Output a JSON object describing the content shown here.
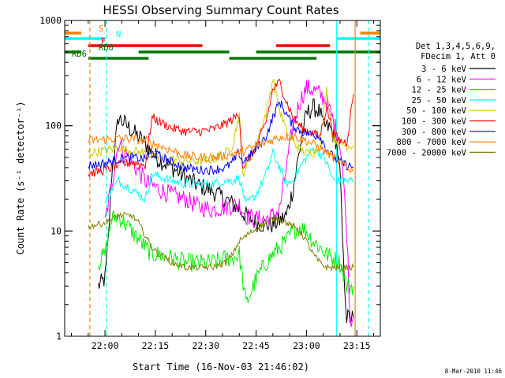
{
  "chart_data": {
    "type": "line",
    "title": "HESSI Observing Summary Count Rates",
    "xlabel": "Start Time (16-Nov-03 21:46:02)",
    "ylabel": "Count Rate (s⁻¹ detector⁻¹)",
    "y_scale": "log",
    "ylim": [
      1,
      1000
    ],
    "xlim_minutes": [
      -12,
      82
    ],
    "x_tick_labels": [
      "22:00",
      "22:15",
      "22:30",
      "22:45",
      "23:00",
      "23:15"
    ],
    "x_tick_minutes": [
      0,
      15,
      30,
      45,
      60,
      75
    ],
    "y_tick_labels": [
      "1",
      "10",
      "100",
      "1000"
    ],
    "y_tick_values": [
      1,
      10,
      100,
      1000
    ],
    "grid": false,
    "legend_position": "right",
    "legend_header": [
      "Det 1,3,4,5,6,9,",
      "FDecim 1, Att 0"
    ],
    "series": [
      {
        "name": "3 - 6 keV",
        "color": "#000000",
        "x": [
          -2,
          0,
          1,
          2,
          4,
          8,
          12,
          14,
          16,
          20,
          24,
          28,
          32,
          36,
          38,
          40,
          42,
          45,
          48,
          50,
          52,
          54,
          56,
          58,
          60,
          62,
          64,
          65,
          67,
          69,
          70,
          71,
          72,
          73,
          74
        ],
        "y": [
          3,
          3.5,
          8,
          35,
          120,
          90,
          68,
          55,
          48,
          40,
          32,
          27,
          24,
          20,
          18,
          16,
          14,
          12,
          11.5,
          11.5,
          12.5,
          14,
          25,
          60,
          130,
          150,
          135,
          100,
          95,
          70,
          35,
          5,
          1.5,
          1.5,
          1.5
        ]
      },
      {
        "name": "6 - 12 keV",
        "color": "#ff00ff",
        "x": [
          0,
          2,
          4,
          8,
          12,
          14,
          16,
          20,
          24,
          28,
          32,
          36,
          38,
          40,
          42,
          45,
          48,
          50,
          52,
          54,
          56,
          58,
          60,
          62,
          64,
          66,
          68,
          70,
          71,
          72,
          73,
          74
        ],
        "y": [
          12,
          28,
          70,
          45,
          30,
          27,
          25,
          22,
          20,
          17,
          16,
          17,
          17.5,
          18,
          14,
          13,
          13,
          14,
          16,
          40,
          100,
          170,
          230,
          220,
          200,
          170,
          110,
          70,
          30,
          10,
          1.5,
          1.5
        ]
      },
      {
        "name": "12 - 25 keV",
        "color": "#00ee00",
        "x": [
          -2,
          0,
          1,
          2,
          4,
          8,
          12,
          14,
          16,
          20,
          24,
          28,
          32,
          36,
          38,
          40,
          42,
          45,
          48,
          50,
          52,
          54,
          56,
          58,
          60,
          62,
          64,
          66,
          68,
          70,
          71,
          72,
          74
        ],
        "y": [
          5,
          6,
          9,
          13,
          14,
          10,
          7,
          6,
          6,
          5.5,
          5,
          5,
          5,
          5.5,
          5.5,
          6,
          2,
          3.5,
          5,
          6,
          7,
          8,
          10,
          11,
          10,
          8,
          7,
          6,
          5.5,
          5,
          4,
          3,
          3
        ]
      },
      {
        "name": "25 - 50 keV",
        "color": "#00ffff",
        "x": [
          0,
          2,
          4,
          8,
          12,
          14,
          16,
          20,
          24,
          28,
          32,
          36,
          38,
          40,
          42,
          45,
          48,
          50,
          52,
          54,
          56,
          58,
          60,
          62,
          64,
          66,
          68,
          70,
          72,
          74
        ],
        "y": [
          18,
          25,
          30,
          25,
          20,
          35,
          33,
          30,
          28,
          28,
          28,
          30,
          30,
          32,
          18,
          22,
          35,
          55,
          40,
          28,
          30,
          40,
          50,
          60,
          55,
          45,
          30,
          30,
          30,
          30
        ]
      },
      {
        "name": "50 - 100 keV",
        "color": "#cccc00",
        "x": [
          -5,
          0,
          2,
          4,
          8,
          12,
          14,
          16,
          20,
          24,
          28,
          32,
          36,
          38,
          40,
          41,
          42,
          44,
          46,
          48,
          50,
          52,
          54,
          56,
          58,
          60,
          62,
          64,
          66,
          68,
          70,
          72,
          74
        ],
        "y": [
          55,
          58,
          60,
          62,
          58,
          55,
          52,
          50,
          48,
          46,
          46,
          48,
          55,
          65,
          130,
          35,
          40,
          55,
          85,
          130,
          280,
          140,
          90,
          70,
          60,
          55,
          55,
          65,
          220,
          75,
          68,
          65,
          65
        ]
      },
      {
        "name": "100 - 300 keV",
        "color": "#ff0000",
        "x": [
          -5,
          0,
          2,
          4,
          8,
          12,
          14,
          16,
          20,
          24,
          28,
          32,
          36,
          38,
          40,
          41,
          42,
          44,
          46,
          48,
          50,
          52,
          54,
          56,
          58,
          60,
          62,
          64,
          66,
          68,
          70,
          72,
          74
        ],
        "y": [
          35,
          38,
          40,
          42,
          45,
          42,
          120,
          110,
          95,
          88,
          88,
          92,
          105,
          115,
          130,
          40,
          45,
          55,
          75,
          110,
          220,
          260,
          170,
          120,
          100,
          90,
          85,
          80,
          150,
          85,
          72,
          70,
          200
        ]
      },
      {
        "name": "300 - 800 keV",
        "color": "#0000ff",
        "x": [
          -5,
          0,
          2,
          4,
          8,
          12,
          14,
          16,
          20,
          24,
          28,
          32,
          36,
          38,
          40,
          41,
          42,
          44,
          46,
          48,
          50,
          52,
          54,
          56,
          58,
          60,
          62,
          64,
          66,
          68,
          70,
          72,
          74
        ],
        "y": [
          42,
          44,
          46,
          48,
          50,
          48,
          55,
          52,
          45,
          40,
          38,
          38,
          40,
          45,
          55,
          45,
          48,
          55,
          65,
          80,
          120,
          170,
          130,
          100,
          90,
          85,
          82,
          80,
          60,
          50,
          45,
          42,
          40
        ]
      },
      {
        "name": "800 - 7000 keV",
        "color": "#ff8000",
        "x": [
          -5,
          0,
          2,
          4,
          8,
          12,
          16,
          20,
          24,
          28,
          32,
          36,
          40,
          44,
          48,
          52,
          56,
          60,
          64,
          68,
          72,
          74
        ],
        "y": [
          72,
          74,
          75,
          76,
          75,
          72,
          65,
          58,
          52,
          50,
          50,
          52,
          56,
          62,
          70,
          78,
          80,
          72,
          62,
          50,
          40,
          38
        ]
      },
      {
        "name": "7000 - 20000 keV",
        "color": "#808000",
        "x": [
          -5,
          0,
          2,
          4,
          8,
          10,
          12,
          14,
          16,
          18,
          20,
          24,
          28,
          32,
          36,
          38,
          40,
          42,
          44,
          46,
          48,
          50,
          52,
          54,
          56,
          58,
          60,
          62,
          64,
          66,
          68,
          70,
          72,
          74
        ],
        "y": [
          11,
          12,
          13,
          14,
          14,
          12,
          9,
          7,
          6,
          5.5,
          5,
          4.5,
          4.5,
          4.5,
          5,
          6,
          8,
          9,
          10,
          11,
          12,
          13,
          13,
          12,
          11,
          10,
          8,
          6,
          5,
          4.5,
          4.5,
          4.5,
          4.5,
          4.5
        ]
      }
    ],
    "state_bars": [
      {
        "label": "S",
        "color": "#ff8000",
        "segments": [
          [
            -12,
            -7
          ],
          [
            76,
            82
          ]
        ]
      },
      {
        "label": "N",
        "color": "#00ffff",
        "segments": [
          [
            -12,
            0
          ],
          [
            69,
            82
          ]
        ]
      },
      {
        "label": "F",
        "color": "#ee0000",
        "segments": [
          [
            -5,
            29
          ],
          [
            51,
            67
          ]
        ]
      },
      {
        "label": "RD0",
        "color": "#007700",
        "segments": [
          [
            -12,
            -7
          ],
          [
            10,
            37
          ],
          [
            45,
            82
          ]
        ]
      },
      {
        "label": "RD6",
        "color": "#007700",
        "segments": [
          [
            -5,
            13
          ],
          [
            37,
            63
          ]
        ]
      }
    ],
    "vertical_markers": [
      {
        "minute": -4.5,
        "color": "#ff8000",
        "style": "dashed"
      },
      {
        "minute": 0.5,
        "color": "#00ffff",
        "style": "dashed"
      },
      {
        "minute": 69,
        "color": "#00ffff",
        "style": "solid"
      },
      {
        "minute": 74.5,
        "color": "#ff8000",
        "style": "solid"
      },
      {
        "minute": 78.5,
        "color": "#00ffff",
        "style": "dashed"
      }
    ],
    "footer_date": "8-Mar-2010 11:46"
  }
}
